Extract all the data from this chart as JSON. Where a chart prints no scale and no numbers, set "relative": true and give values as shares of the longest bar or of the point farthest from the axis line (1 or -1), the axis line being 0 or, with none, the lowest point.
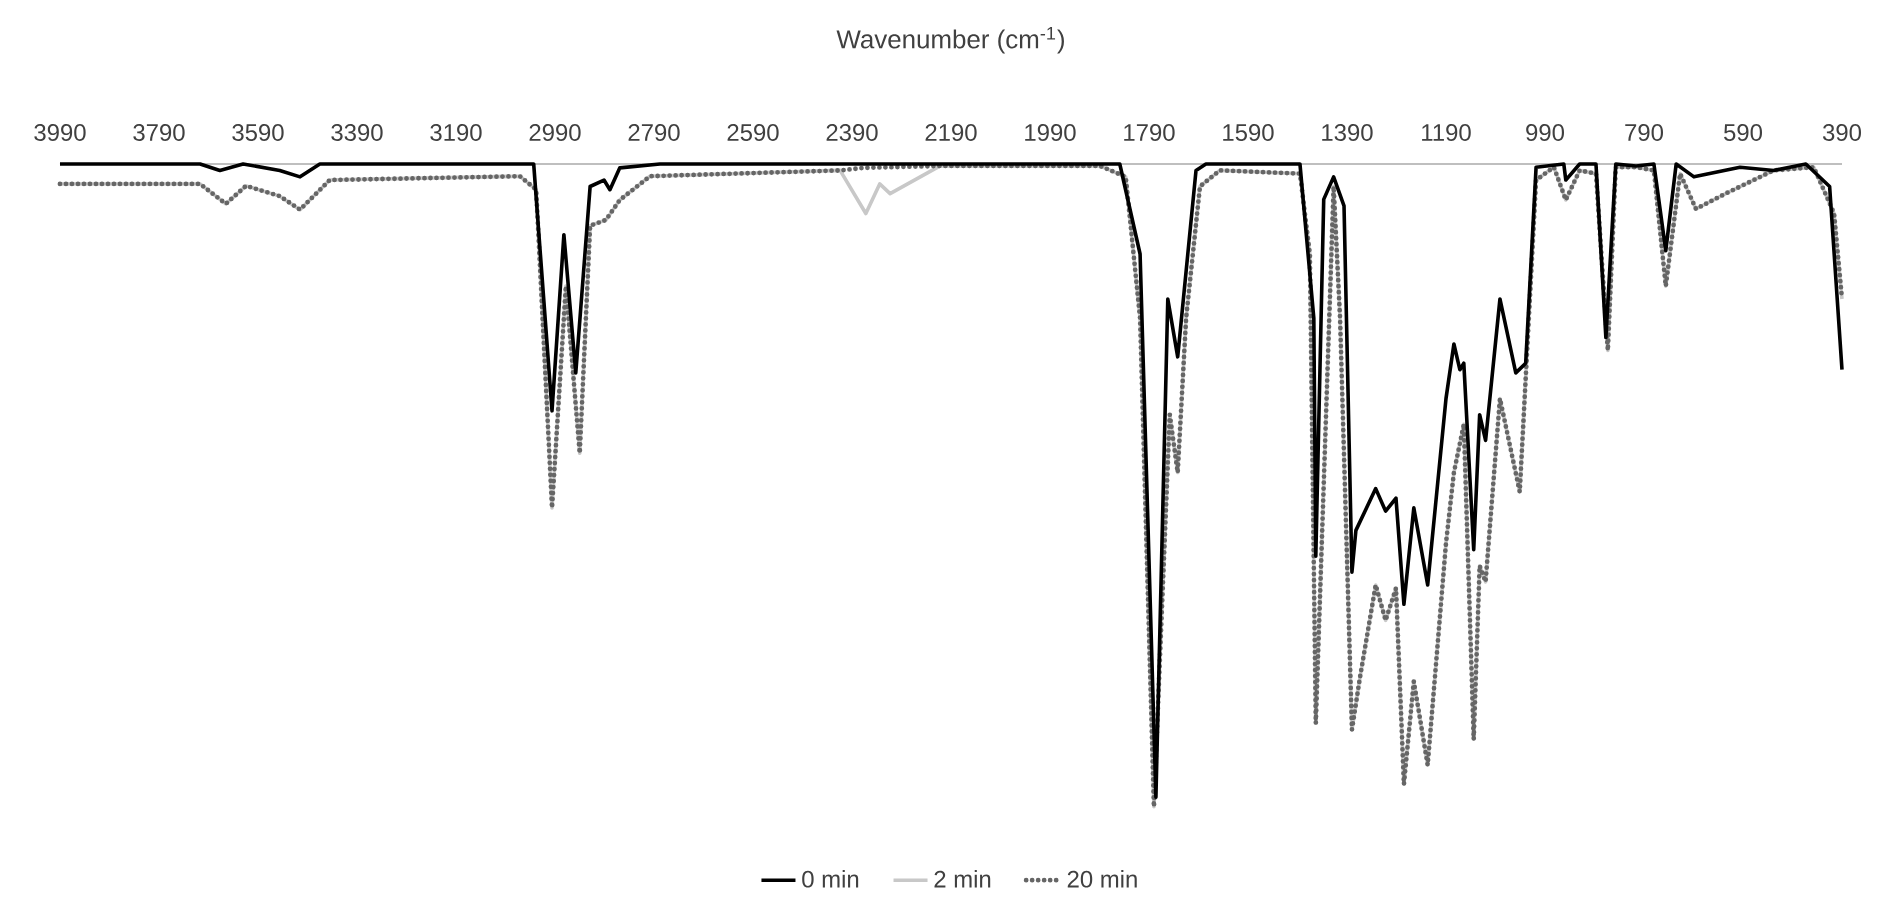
{
  "chart_data": {
    "type": "line",
    "xlabel": "Wavenumber (cm$^{-1}$)",
    "relative": true,
    "xlim": [
      3990,
      390
    ],
    "xticks": [
      3990,
      3790,
      3590,
      3390,
      3190,
      2990,
      2790,
      2590,
      2390,
      2190,
      1990,
      1790,
      1590,
      1390,
      1190,
      990,
      790,
      590,
      390
    ],
    "legend": "bottom",
    "grid": false,
    "marker": "none",
    "series": [
      {
        "name": "0 min",
        "color": "#000000",
        "line_style": "solid",
        "x": [
          3990,
          3707,
          3667,
          3620,
          3546,
          3505,
          3465,
          3033,
          2996,
          2972,
          2948,
          2919,
          2891,
          2879,
          2859,
          2778,
          1849,
          1808,
          1776,
          1752,
          1732,
          1695,
          1675,
          1485,
          1457,
          1453,
          1437,
          1417,
          1396,
          1380,
          1372,
          1332,
          1312,
          1291,
          1275,
          1255,
          1227,
          1190,
          1174,
          1162,
          1154,
          1134,
          1122,
          1110,
          1081,
          1049,
          1029,
          1008,
          952,
          948,
          920,
          887,
          867,
          847,
          806,
          770,
          746,
          725,
          689,
          596,
          528,
          463,
          415,
          390
        ],
        "values": [
          0,
          0,
          -0.01,
          0,
          -0.01,
          -0.02,
          0,
          0,
          -0.384,
          -0.11,
          -0.325,
          -0.035,
          -0.025,
          -0.04,
          -0.006,
          0,
          0,
          -0.14,
          -0.985,
          -0.21,
          -0.3,
          -0.01,
          0,
          0,
          -0.24,
          -0.61,
          -0.055,
          -0.02,
          -0.065,
          -0.635,
          -0.57,
          -0.505,
          -0.54,
          -0.52,
          -0.685,
          -0.535,
          -0.655,
          -0.365,
          -0.28,
          -0.32,
          -0.31,
          -0.6,
          -0.39,
          -0.43,
          -0.21,
          -0.325,
          -0.31,
          -0.005,
          0,
          -0.025,
          0,
          0,
          -0.27,
          0,
          -0.003,
          0,
          -0.135,
          0,
          -0.02,
          -0.005,
          -0.01,
          0,
          -0.035,
          -0.32
        ]
      },
      {
        "name": "2 min",
        "color": "#c8c8c8",
        "line_style": "solid",
        "x": [
          3990,
          3707,
          3655,
          3614,
          3546,
          3505,
          3445,
          3061,
          3028,
          2996,
          2968,
          2940,
          2919,
          2887,
          2859,
          2798,
          2414,
          2362,
          2334,
          2313,
          2212,
          1889,
          1837,
          1808,
          1780,
          1748,
          1732,
          1715,
          1687,
          1647,
          1485,
          1465,
          1453,
          1417,
          1404,
          1380,
          1364,
          1332,
          1312,
          1291,
          1275,
          1255,
          1227,
          1190,
          1174,
          1154,
          1134,
          1122,
          1110,
          1081,
          1041,
          1008,
          972,
          948,
          920,
          887,
          863,
          847,
          806,
          770,
          746,
          717,
          685,
          625,
          528,
          447,
          406,
          390
        ],
        "values": [
          -0.031,
          -0.031,
          -0.062,
          -0.034,
          -0.05,
          -0.071,
          -0.025,
          -0.019,
          -0.04,
          -0.535,
          -0.19,
          -0.45,
          -0.096,
          -0.087,
          -0.056,
          -0.019,
          -0.01,
          -0.077,
          -0.031,
          -0.046,
          -0.003,
          -0.003,
          -0.02,
          -0.24,
          -1.0,
          -0.39,
          -0.48,
          -0.24,
          -0.035,
          -0.01,
          -0.015,
          -0.14,
          -0.87,
          -0.035,
          -0.24,
          -0.88,
          -0.8,
          -0.655,
          -0.71,
          -0.66,
          -0.965,
          -0.805,
          -0.935,
          -0.59,
          -0.48,
          -0.405,
          -0.895,
          -0.625,
          -0.65,
          -0.365,
          -0.51,
          -0.025,
          -0.005,
          -0.056,
          -0.01,
          -0.015,
          -0.29,
          -0.005,
          -0.005,
          -0.01,
          -0.19,
          -0.015,
          -0.07,
          -0.046,
          -0.01,
          -0.005,
          -0.077,
          -0.21
        ]
      },
      {
        "name": "20 min",
        "color": "#666666",
        "line_style": "dotted",
        "x": [
          3990,
          3707,
          3655,
          3614,
          3546,
          3505,
          3445,
          3061,
          3028,
          2996,
          2968,
          2940,
          2919,
          2887,
          2859,
          2798,
          2414,
          2366,
          2212,
          1889,
          1837,
          1808,
          1780,
          1748,
          1732,
          1715,
          1687,
          1647,
          1485,
          1465,
          1453,
          1417,
          1404,
          1380,
          1364,
          1332,
          1312,
          1291,
          1275,
          1255,
          1227,
          1190,
          1174,
          1154,
          1134,
          1122,
          1110,
          1081,
          1041,
          1008,
          972,
          948,
          920,
          887,
          863,
          847,
          806,
          770,
          746,
          717,
          685,
          625,
          528,
          447,
          406,
          390
        ],
        "values": [
          -0.031,
          -0.031,
          -0.062,
          -0.034,
          -0.05,
          -0.071,
          -0.025,
          -0.019,
          -0.04,
          -0.535,
          -0.19,
          -0.45,
          -0.096,
          -0.087,
          -0.056,
          -0.019,
          -0.01,
          -0.006,
          -0.003,
          -0.003,
          -0.02,
          -0.24,
          -1.0,
          -0.39,
          -0.48,
          -0.24,
          -0.035,
          -0.01,
          -0.015,
          -0.14,
          -0.87,
          -0.035,
          -0.24,
          -0.88,
          -0.8,
          -0.655,
          -0.71,
          -0.66,
          -0.965,
          -0.805,
          -0.935,
          -0.59,
          -0.48,
          -0.405,
          -0.895,
          -0.625,
          -0.65,
          -0.365,
          -0.51,
          -0.025,
          -0.005,
          -0.056,
          -0.01,
          -0.015,
          -0.29,
          -0.005,
          -0.005,
          -0.01,
          -0.19,
          -0.015,
          -0.07,
          -0.046,
          -0.01,
          -0.005,
          -0.077,
          -0.21
        ]
      }
    ]
  }
}
